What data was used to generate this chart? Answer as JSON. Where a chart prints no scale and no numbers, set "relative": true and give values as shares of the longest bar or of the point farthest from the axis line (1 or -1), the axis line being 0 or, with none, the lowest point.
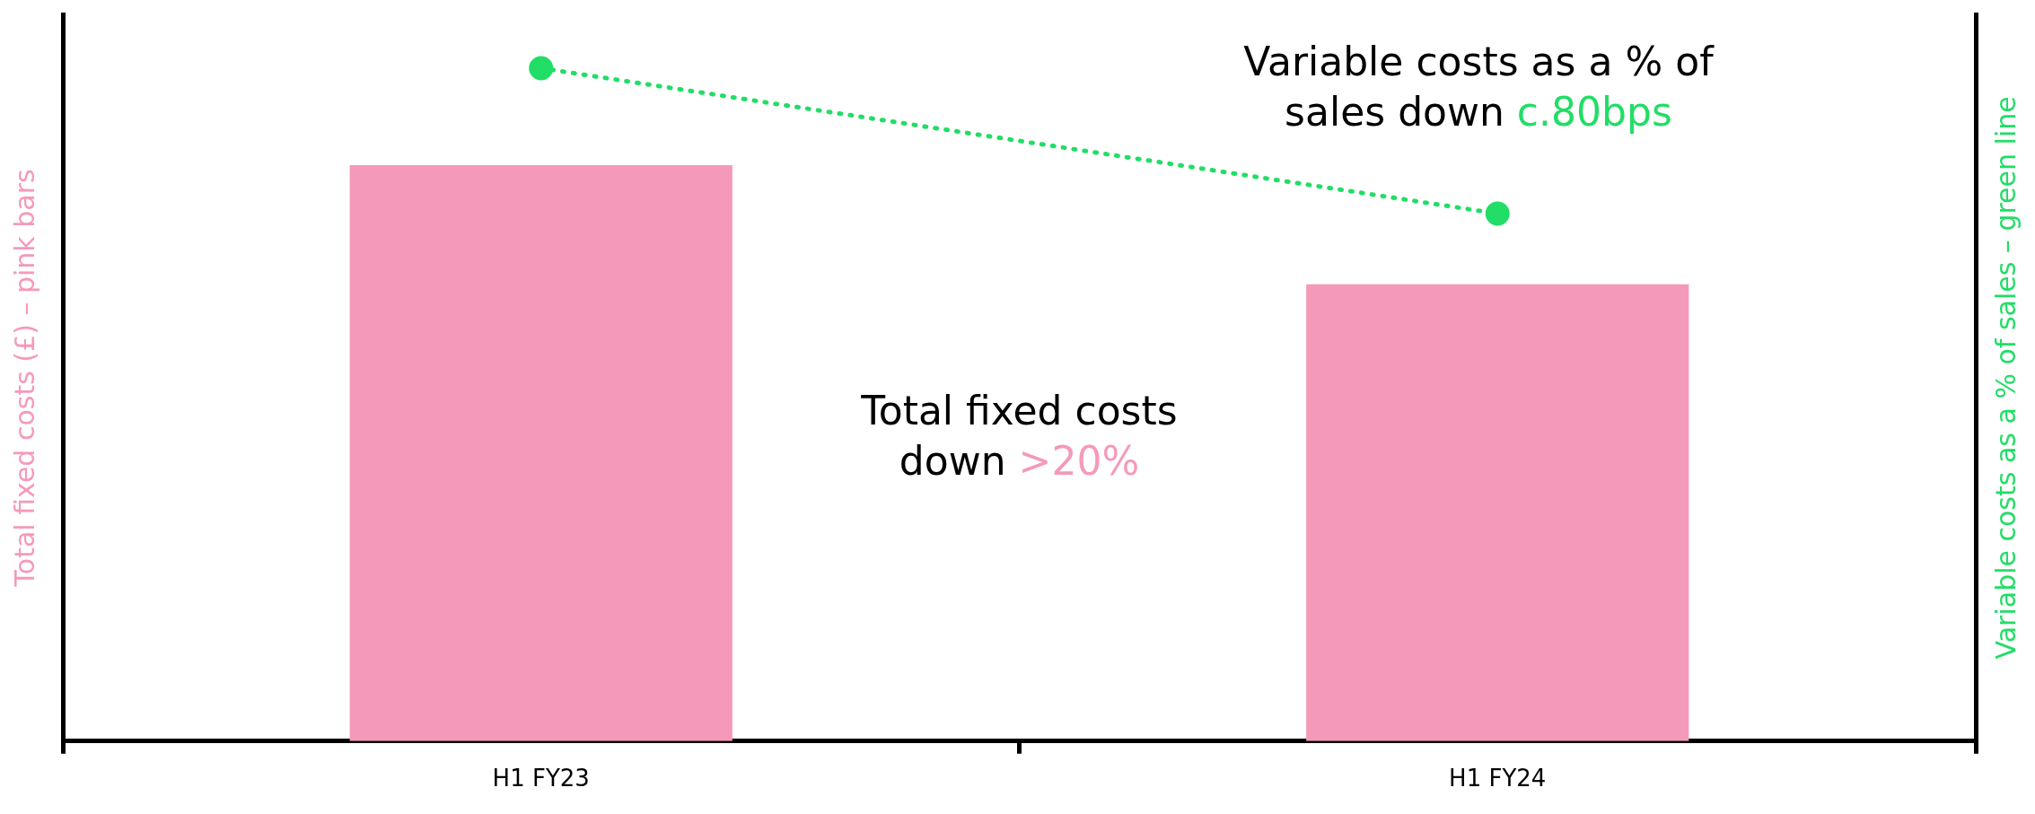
{
  "chart_data": {
    "type": "bar",
    "relative": true,
    "categories": [
      "H1 FY23",
      "H1 FY24"
    ],
    "series": [
      {
        "color": "#f599bb",
        "values": [
          0.856,
          0.679
        ]
      },
      {
        "type": "line",
        "color": "#22dd66",
        "values": [
          1,
          0.784
        ],
        "marker": "circle",
        "line_style": "dotted"
      }
    ],
    "ylabel": "Total fixed costs (£) – pink bars",
    "y2label": "Variable costs as a % of sales – green line",
    "annotations": [
      "Variable costs as a % of sales down c.80bps",
      "Total fixed costs down >20%"
    ],
    "legend": false,
    "grid": false,
    "tick_labels": "x"
  }
}
